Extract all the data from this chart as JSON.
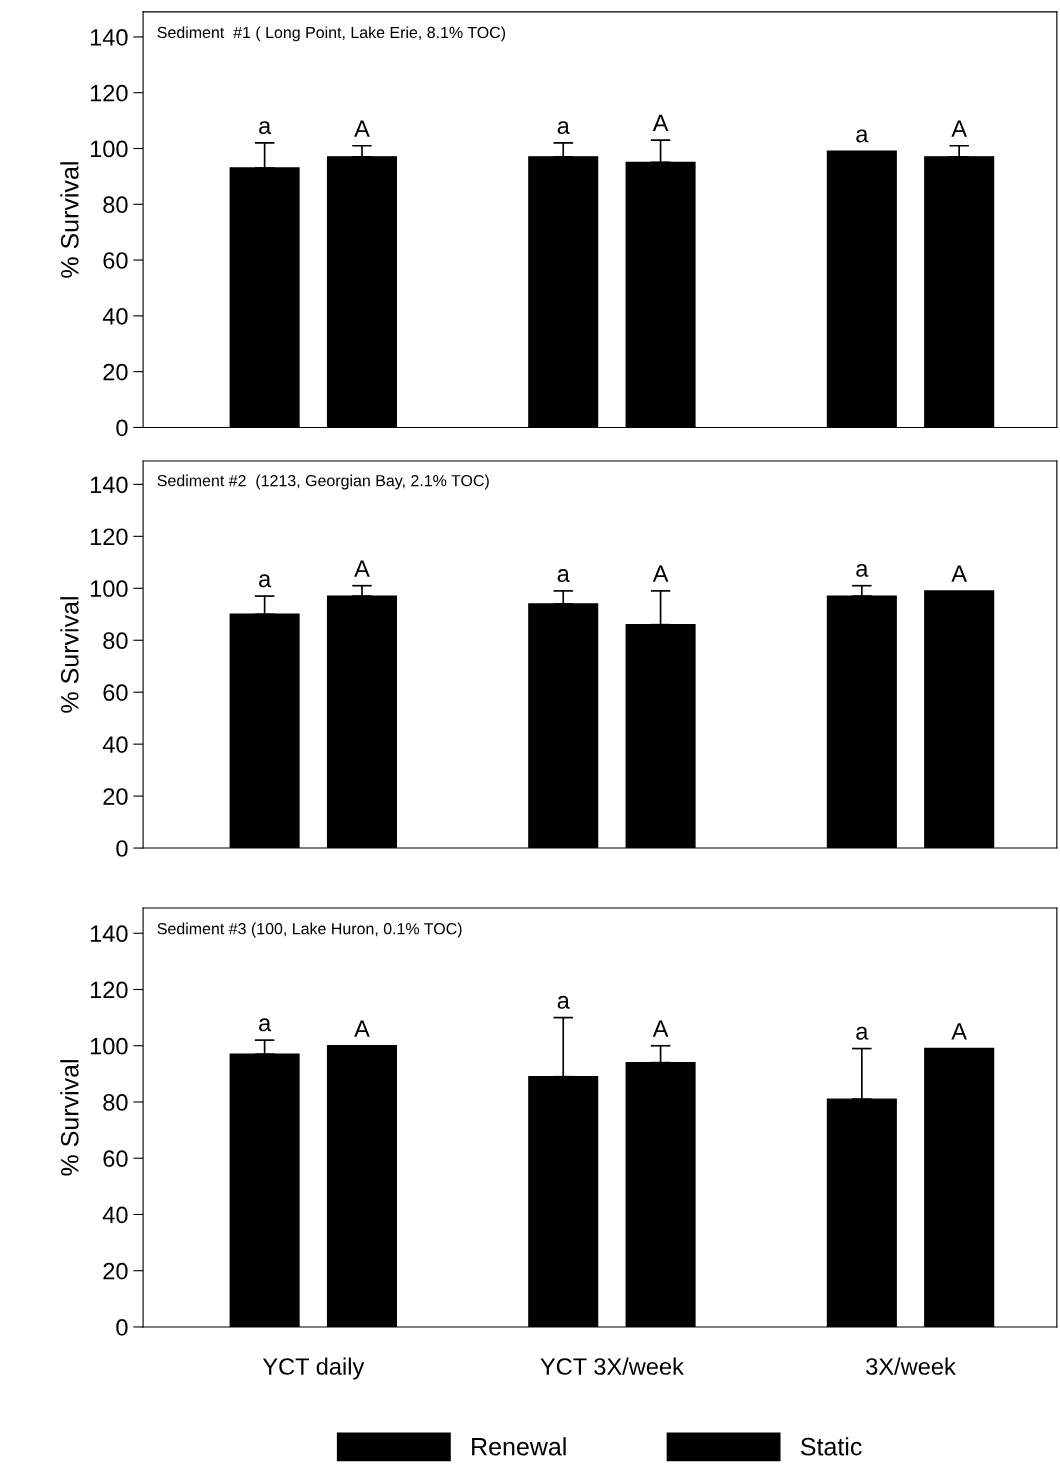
{
  "chart_data": [
    {
      "type": "bar",
      "title": "Sediment  #1 ( Long Point, Lake Erie, 8.1% TOC)",
      "ylabel": "% Survival",
      "categories": [
        null,
        null,
        null
      ],
      "ylim": [
        0,
        149
      ],
      "yticks": [
        0,
        20,
        40,
        60,
        80,
        100,
        120,
        140
      ],
      "grid": false,
      "series": [
        {
          "color": "#000000",
          "values": [
            93,
            97,
            99
          ],
          "errors": [
            9,
            5,
            null
          ],
          "value_labels": [
            "a",
            "a",
            "a"
          ]
        },
        {
          "color": "#000000",
          "values": [
            97,
            95,
            97
          ],
          "errors": [
            4,
            8,
            4
          ],
          "value_labels": [
            "A",
            "A",
            "A"
          ]
        }
      ]
    },
    {
      "type": "bar",
      "title": "Sediment #2  (1213, Georgian Bay, 2.1% TOC)",
      "ylabel": "% Survival",
      "categories": [
        null,
        null,
        null
      ],
      "ylim": [
        0,
        149
      ],
      "yticks": [
        0,
        20,
        40,
        60,
        80,
        100,
        120,
        140
      ],
      "grid": false,
      "series": [
        {
          "color": "#000000",
          "values": [
            90,
            94,
            97
          ],
          "errors": [
            7,
            5,
            4
          ],
          "value_labels": [
            "a",
            "a",
            "a"
          ]
        },
        {
          "color": "#000000",
          "values": [
            97,
            86,
            99
          ],
          "errors": [
            4,
            13,
            null
          ],
          "value_labels": [
            "A",
            "A",
            "A"
          ]
        }
      ]
    },
    {
      "type": "bar",
      "title": "Sediment #3 (100, Lake Huron, 0.1% TOC)",
      "ylabel": "% Survival",
      "categories": [
        "YCT daily",
        "YCT 3X/week",
        "3X/week"
      ],
      "ylim": [
        0,
        149
      ],
      "yticks": [
        0,
        20,
        40,
        60,
        80,
        100,
        120,
        140
      ],
      "grid": false,
      "legend": "bottom",
      "series": [
        {
          "name": "Renewal",
          "color": "#000000",
          "values": [
            97,
            89,
            81
          ],
          "errors": [
            5,
            21,
            18
          ],
          "value_labels": [
            "a",
            "a",
            "a"
          ]
        },
        {
          "name": "Static",
          "color": "#000000",
          "values": [
            100,
            94,
            99
          ],
          "errors": [
            null,
            6,
            null
          ],
          "value_labels": [
            "A",
            "A",
            "A"
          ]
        }
      ]
    }
  ]
}
